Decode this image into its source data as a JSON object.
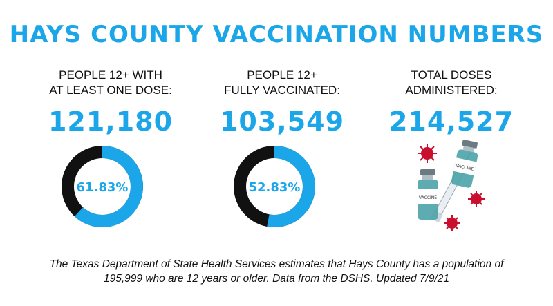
{
  "title": "HAYS COUNTY VACCINATION NUMBERS",
  "stats": [
    {
      "label_lines": [
        "PEOPLE  12+ WITH",
        "AT LEAST ONE DOSE:"
      ],
      "value": "121,180",
      "percent_label": "61.83%",
      "percent": 61.83
    },
    {
      "label_lines": [
        "PEOPLE 12+",
        "FULLY VACCINATED:"
      ],
      "value": "103,549",
      "percent_label": "52.83%",
      "percent": 52.83
    },
    {
      "label_lines": [
        "TOTAL DOSES",
        "ADMINISTERED:"
      ],
      "value": "214,527"
    }
  ],
  "illustration": {
    "icon": "vaccine-vials-syringe-virus-icon",
    "vial_label": "VACCINE"
  },
  "footer_lines": [
    "The Texas Department of State Health Services estimates that Hays County has a population of",
    "195,999 who are 12 years or older. Data from the DSHS. Updated 7/9/21"
  ],
  "colors": {
    "accent": "#1aa6e8",
    "dark": "#111111",
    "virus": "#c8102e",
    "vial_glass": "#4aa3a8"
  }
}
